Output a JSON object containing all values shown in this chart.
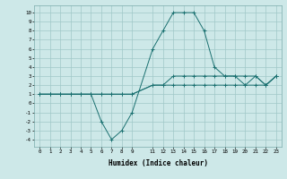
{
  "xlabel": "Humidex (Indice chaleur)",
  "ylabel": "",
  "background_color": "#cde8e8",
  "grid_color": "#a0c8c8",
  "line_color": "#1a7070",
  "xlim": [
    -0.5,
    23.5
  ],
  "ylim": [
    -4.8,
    10.8
  ],
  "xticks": [
    0,
    1,
    2,
    3,
    4,
    5,
    6,
    7,
    8,
    9,
    11,
    12,
    13,
    14,
    15,
    16,
    17,
    18,
    19,
    20,
    21,
    22,
    23
  ],
  "yticks": [
    10,
    9,
    8,
    7,
    6,
    5,
    4,
    3,
    2,
    1,
    0,
    -1,
    -2,
    -3,
    -4
  ],
  "line1_x": [
    0,
    1,
    2,
    3,
    4,
    5,
    6,
    7,
    8,
    9,
    11,
    12,
    13,
    14,
    15,
    16,
    17,
    18,
    19,
    20,
    21,
    22,
    23
  ],
  "line1_y": [
    1,
    1,
    1,
    1,
    1,
    1,
    1,
    1,
    1,
    1,
    2,
    2,
    2,
    2,
    2,
    2,
    2,
    2,
    2,
    2,
    2,
    2,
    3
  ],
  "line2_x": [
    0,
    1,
    2,
    3,
    4,
    5,
    6,
    7,
    8,
    9,
    11,
    12,
    13,
    14,
    15,
    16,
    17,
    18,
    19,
    20,
    21,
    22,
    23
  ],
  "line2_y": [
    1,
    1,
    1,
    1,
    1,
    1,
    1,
    1,
    1,
    1,
    2,
    2,
    3,
    3,
    3,
    3,
    3,
    3,
    3,
    3,
    3,
    2,
    3
  ],
  "line3_x": [
    0,
    1,
    2,
    3,
    4,
    5,
    6,
    7,
    8,
    9,
    11,
    12,
    13,
    14,
    15,
    16,
    17,
    18,
    19,
    20,
    21,
    22,
    23
  ],
  "line3_y": [
    1,
    1,
    1,
    1,
    1,
    1,
    -2,
    -4,
    -3,
    -1,
    6,
    8,
    10,
    10,
    10,
    8,
    4,
    3,
    3,
    2,
    3,
    2,
    3
  ]
}
